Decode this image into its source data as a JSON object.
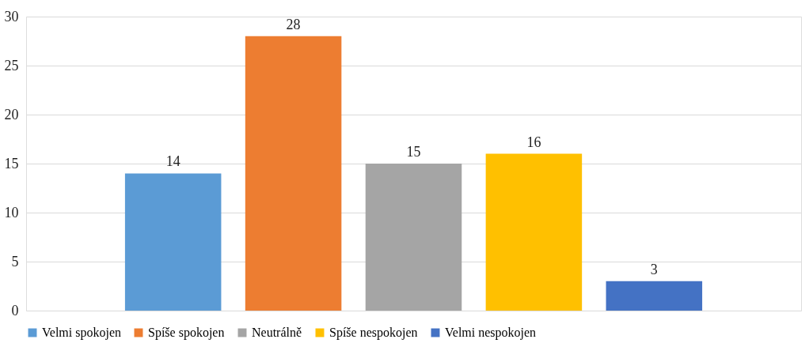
{
  "chart_data": {
    "type": "bar",
    "categories": [
      null
    ],
    "series": [
      {
        "name": "Velmi spokojen",
        "color": "#5b9bd5",
        "values": [
          14
        ]
      },
      {
        "name": "Spíše spokojen",
        "color": "#ed7d31",
        "values": [
          28
        ]
      },
      {
        "name": "Neutrálně",
        "color": "#a5a5a5",
        "values": [
          15
        ]
      },
      {
        "name": "Spíše nespokojen",
        "color": "#ffc000",
        "values": [
          16
        ]
      },
      {
        "name": "Velmi nespokojen",
        "color": "#4472c4",
        "values": [
          3
        ]
      }
    ],
    "ylim": [
      0,
      30
    ],
    "yticks": [
      0,
      5,
      10,
      15,
      20,
      25,
      30
    ],
    "grid": "y",
    "legend": "bottom",
    "data_labels": true
  }
}
